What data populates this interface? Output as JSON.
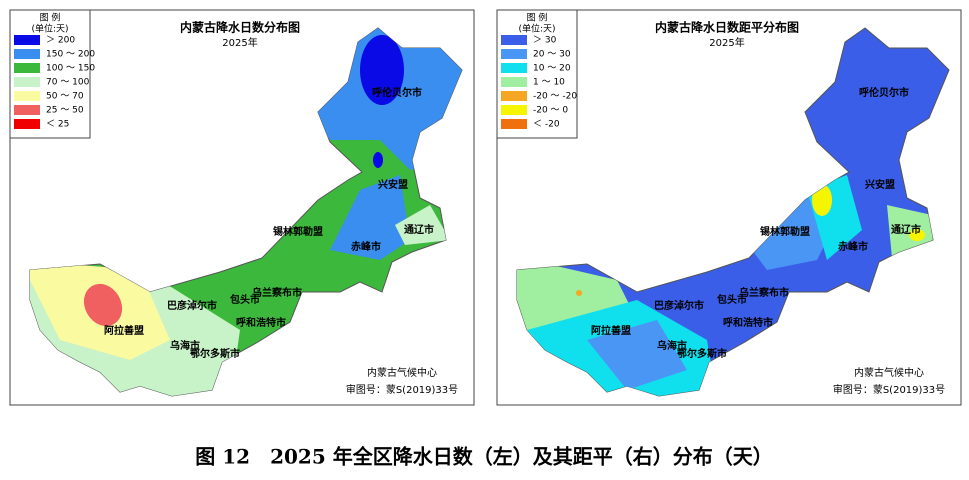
{
  "left_map": {
    "title": "内蒙古降水日数分布图",
    "year": "2025年",
    "legend": {
      "title": "图 例",
      "unit": "(单位:天)",
      "items": [
        {
          "label": "＞ 200",
          "color": "#0a0ae6"
        },
        {
          "label": "150 ～ 200",
          "color": "#3a8ef0"
        },
        {
          "label": "100 ～ 150",
          "color": "#3cb83c"
        },
        {
          "label": "70 ～ 100",
          "color": "#c8f2c8"
        },
        {
          "label": "50 ～ 70",
          "color": "#fafaa0"
        },
        {
          "label": "25 ～ 50",
          "color": "#f06060"
        },
        {
          "label": "＜ 25",
          "color": "#f00000"
        }
      ]
    },
    "regions": [
      "呼伦贝尔市",
      "兴安盟",
      "锡林郭勒盟",
      "赤峰市",
      "通辽市",
      "乌兰察布市",
      "包头市",
      "巴彦淖尔市",
      "呼和浩特市",
      "阿拉善盟",
      "乌海市",
      "鄂尔多斯市"
    ],
    "credit": "内蒙古气候中心",
    "review_number": "审图号：蒙S(2019)33号"
  },
  "right_map": {
    "title": "内蒙古降水日数距平分布图",
    "year": "2025年",
    "legend": {
      "title": "图 例",
      "unit": "(单位:天)",
      "items": [
        {
          "label": "＞ 30",
          "color": "#3a5ee8"
        },
        {
          "label": "20 ～ 30",
          "color": "#4a96f5"
        },
        {
          "label": "10 ～ 20",
          "color": "#10e0ee"
        },
        {
          "label": "1 ～ 10",
          "color": "#a0eea0"
        },
        {
          "label": "-20 ～ -20",
          "color": "#f5a623"
        },
        {
          "label": "-20 ～ 0",
          "color": "#f5f500"
        },
        {
          "label": "＜ -20",
          "color": "#f07010"
        }
      ]
    },
    "regions": [
      "呼伦贝尔市",
      "兴安盟",
      "锡林郭勒盟",
      "赤峰市",
      "通辽市",
      "乌兰察布市",
      "包头市",
      "巴彦淖尔市",
      "呼和浩特市",
      "阿拉善盟",
      "乌海市",
      "鄂尔多斯市"
    ],
    "credit": "内蒙古气候中心",
    "review_number": "审图号：蒙S(2019)33号"
  },
  "caption": "图 12　2025 年全区降水日数（左）及其距平（右）分布（天）"
}
